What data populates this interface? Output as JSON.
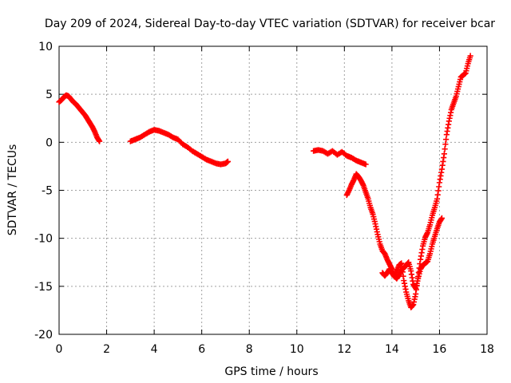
{
  "chart_data": {
    "type": "scatter",
    "title": "Day 209 of 2024, Sidereal Day-to-day VTEC variation (SDTVAR) for receiver bcar",
    "xlabel": "GPS time / hours",
    "ylabel": "SDTVAR / TECUs",
    "xlim": [
      0,
      18
    ],
    "ylim": [
      -20,
      10
    ],
    "xticks": [
      "0",
      "2",
      "4",
      "6",
      "8",
      "10",
      "12",
      "14",
      "16",
      "18"
    ],
    "yticks": [
      "10",
      "5",
      "0",
      "-5",
      "-10",
      "-15",
      "-20"
    ],
    "xtick_values": [
      0,
      2,
      4,
      6,
      8,
      10,
      12,
      14,
      16,
      18
    ],
    "ytick_values": [
      10,
      5,
      0,
      -5,
      -10,
      -15,
      -20
    ],
    "grid": true,
    "marker": "plus",
    "color": "#ff0000",
    "series": [
      {
        "name": "segment-1",
        "points": [
          [
            0.0,
            4.2
          ],
          [
            0.1,
            4.4
          ],
          [
            0.2,
            4.7
          ],
          [
            0.3,
            4.9
          ],
          [
            0.4,
            4.8
          ],
          [
            0.5,
            4.5
          ],
          [
            0.6,
            4.2
          ],
          [
            0.7,
            4.0
          ],
          [
            0.8,
            3.7
          ],
          [
            0.9,
            3.4
          ],
          [
            1.0,
            3.1
          ],
          [
            1.1,
            2.8
          ],
          [
            1.2,
            2.4
          ],
          [
            1.3,
            2.0
          ],
          [
            1.4,
            1.6
          ],
          [
            1.5,
            1.1
          ],
          [
            1.6,
            0.5
          ],
          [
            1.7,
            0.1
          ]
        ]
      },
      {
        "name": "segment-2",
        "points": [
          [
            3.0,
            0.1
          ],
          [
            3.2,
            0.3
          ],
          [
            3.4,
            0.5
          ],
          [
            3.6,
            0.8
          ],
          [
            3.8,
            1.1
          ],
          [
            4.0,
            1.3
          ],
          [
            4.2,
            1.2
          ],
          [
            4.4,
            1.0
          ],
          [
            4.6,
            0.8
          ],
          [
            4.8,
            0.5
          ],
          [
            5.0,
            0.3
          ],
          [
            5.2,
            -0.2
          ],
          [
            5.4,
            -0.5
          ],
          [
            5.6,
            -0.9
          ],
          [
            5.8,
            -1.2
          ],
          [
            6.0,
            -1.5
          ],
          [
            6.2,
            -1.8
          ],
          [
            6.4,
            -2.0
          ],
          [
            6.6,
            -2.2
          ],
          [
            6.8,
            -2.3
          ],
          [
            7.0,
            -2.2
          ],
          [
            7.1,
            -2.0
          ]
        ]
      },
      {
        "name": "segment-3",
        "points": [
          [
            10.7,
            -0.9
          ],
          [
            10.9,
            -0.8
          ],
          [
            11.1,
            -0.9
          ],
          [
            11.3,
            -1.2
          ],
          [
            11.5,
            -0.9
          ],
          [
            11.7,
            -1.3
          ],
          [
            11.9,
            -1.0
          ],
          [
            12.1,
            -1.4
          ],
          [
            12.3,
            -1.6
          ],
          [
            12.5,
            -1.9
          ],
          [
            12.7,
            -2.1
          ],
          [
            12.9,
            -2.3
          ]
        ]
      },
      {
        "name": "segment-4",
        "points": [
          [
            12.1,
            -5.5
          ],
          [
            12.2,
            -5.0
          ],
          [
            12.3,
            -4.4
          ],
          [
            12.4,
            -3.9
          ],
          [
            12.5,
            -3.3
          ],
          [
            12.6,
            -3.6
          ],
          [
            12.7,
            -4.0
          ],
          [
            12.8,
            -4.5
          ],
          [
            12.9,
            -5.2
          ],
          [
            13.0,
            -5.9
          ],
          [
            13.1,
            -6.8
          ],
          [
            13.2,
            -7.5
          ],
          [
            13.3,
            -8.5
          ],
          [
            13.4,
            -9.6
          ],
          [
            13.5,
            -10.6
          ],
          [
            13.6,
            -11.3
          ],
          [
            13.7,
            -11.6
          ],
          [
            13.8,
            -12.2
          ],
          [
            13.9,
            -12.7
          ],
          [
            14.0,
            -13.2
          ],
          [
            14.1,
            -13.9
          ],
          [
            14.2,
            -14.2
          ],
          [
            14.3,
            -13.8
          ],
          [
            14.4,
            -13.3
          ],
          [
            14.5,
            -13.1
          ],
          [
            14.6,
            -12.8
          ],
          [
            14.7,
            -12.5
          ],
          [
            14.8,
            -13.4
          ],
          [
            14.9,
            -14.8
          ],
          [
            15.0,
            -15.2
          ],
          [
            15.1,
            -14.2
          ],
          [
            15.2,
            -13.2
          ],
          [
            15.3,
            -12.8
          ],
          [
            15.4,
            -12.6
          ],
          [
            15.5,
            -12.4
          ],
          [
            15.6,
            -11.6
          ],
          [
            15.7,
            -10.6
          ],
          [
            15.8,
            -9.8
          ],
          [
            15.9,
            -9.0
          ],
          [
            16.0,
            -8.3
          ],
          [
            16.1,
            -7.9
          ]
        ]
      },
      {
        "name": "segment-5",
        "points": [
          [
            13.6,
            -13.6
          ],
          [
            13.7,
            -13.9
          ],
          [
            13.8,
            -13.6
          ],
          [
            13.9,
            -13.2
          ],
          [
            14.0,
            -13.6
          ],
          [
            14.1,
            -14.0
          ],
          [
            14.2,
            -13.4
          ],
          [
            14.3,
            -12.8
          ],
          [
            14.4,
            -12.6
          ],
          [
            14.5,
            -14.4
          ],
          [
            14.6,
            -15.6
          ],
          [
            14.7,
            -16.5
          ],
          [
            14.8,
            -17.2
          ],
          [
            14.9,
            -16.9
          ],
          [
            15.0,
            -15.8
          ],
          [
            15.1,
            -14.0
          ],
          [
            15.2,
            -12.2
          ],
          [
            15.3,
            -10.8
          ],
          [
            15.4,
            -9.9
          ],
          [
            15.5,
            -9.4
          ],
          [
            15.6,
            -8.6
          ],
          [
            15.7,
            -7.6
          ],
          [
            15.8,
            -6.8
          ],
          [
            15.9,
            -5.9
          ],
          [
            16.0,
            -4.2
          ],
          [
            16.1,
            -2.8
          ],
          [
            16.2,
            -1.2
          ],
          [
            16.3,
            0.8
          ],
          [
            16.4,
            2.2
          ],
          [
            16.5,
            3.4
          ],
          [
            16.6,
            4.1
          ],
          [
            16.7,
            4.8
          ],
          [
            16.8,
            5.8
          ],
          [
            16.9,
            6.8
          ],
          [
            17.0,
            7.0
          ],
          [
            17.1,
            7.2
          ],
          [
            17.2,
            8.2
          ],
          [
            17.3,
            9.0
          ]
        ]
      }
    ]
  }
}
